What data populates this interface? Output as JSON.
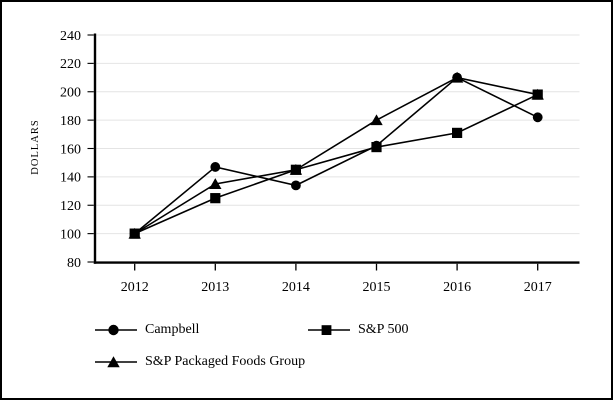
{
  "chart_data": {
    "type": "line",
    "title": "",
    "xlabel": "",
    "ylabel": "DOLLARS",
    "categories": [
      "2012",
      "2013",
      "2014",
      "2015",
      "2016",
      "2017"
    ],
    "series": [
      {
        "name": "Campbell",
        "marker": "circle",
        "values": [
          100,
          147,
          134,
          162,
          210,
          182
        ]
      },
      {
        "name": "S&P 500",
        "marker": "square",
        "values": [
          100,
          125,
          145,
          161,
          171,
          198
        ]
      },
      {
        "name": "S&P Packaged Foods Group",
        "marker": "triangle",
        "values": [
          100,
          135,
          145,
          180,
          210,
          198
        ]
      }
    ],
    "ylim": [
      80,
      240
    ],
    "yticks": [
      80,
      100,
      120,
      140,
      160,
      180,
      200,
      220,
      240
    ],
    "grid": true,
    "legend_position": "bottom",
    "colors": {
      "series": "#000000",
      "grid": "#e4e4e4",
      "axis": "#000000",
      "text": "#000000",
      "background": "#ffffff"
    }
  }
}
